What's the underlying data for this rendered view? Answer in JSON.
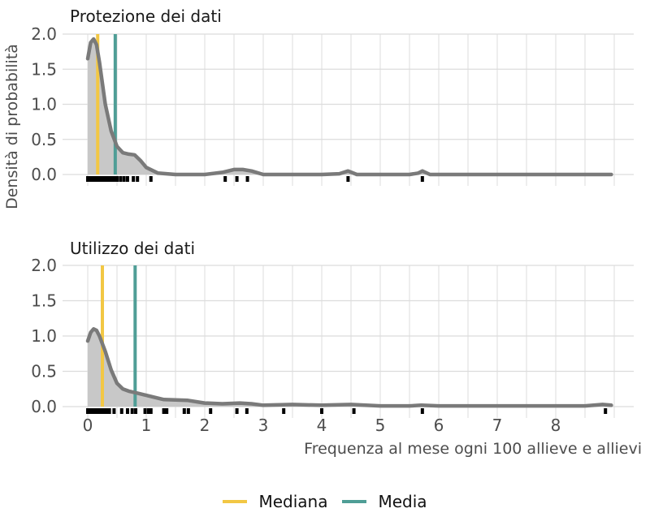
{
  "chart_data": [
    {
      "type": "area",
      "title": "Protezione dei dati",
      "xlabel": "Frequenza al mese ogni 100 allieve e allievi",
      "ylabel": "Densità di probabilità",
      "xlim": [
        0,
        9
      ],
      "ylim": [
        0,
        2.0
      ],
      "x_ticks": [
        0,
        1,
        2,
        3,
        4,
        5,
        6,
        7,
        8
      ],
      "y_ticks": [
        0.0,
        0.5,
        1.0,
        1.5,
        2.0
      ],
      "grid": true,
      "density_curve": {
        "x": [
          0.0,
          0.05,
          0.1,
          0.15,
          0.2,
          0.3,
          0.4,
          0.5,
          0.6,
          0.7,
          0.8,
          0.9,
          1.0,
          1.2,
          1.5,
          2.0,
          2.3,
          2.5,
          2.65,
          2.8,
          3.0,
          3.5,
          4.0,
          4.3,
          4.45,
          4.6,
          5.0,
          5.5,
          5.65,
          5.72,
          5.85,
          6.5,
          7.5,
          8.5,
          8.95
        ],
        "y": [
          1.65,
          1.88,
          1.93,
          1.85,
          1.6,
          1.0,
          0.62,
          0.4,
          0.31,
          0.29,
          0.28,
          0.2,
          0.1,
          0.02,
          0.0,
          0.0,
          0.03,
          0.07,
          0.07,
          0.05,
          0.0,
          0.0,
          0.0,
          0.01,
          0.05,
          0.0,
          0.0,
          0.0,
          0.02,
          0.05,
          0.0,
          0.0,
          0.0,
          0.0,
          0.0
        ]
      },
      "rug": [
        0.0,
        0.03,
        0.06,
        0.08,
        0.1,
        0.12,
        0.14,
        0.16,
        0.18,
        0.2,
        0.22,
        0.25,
        0.28,
        0.3,
        0.33,
        0.36,
        0.4,
        0.45,
        0.5,
        0.56,
        0.62,
        0.68,
        0.78,
        0.85,
        1.08,
        2.35,
        2.55,
        2.73,
        4.45,
        5.72
      ],
      "median": 0.17,
      "mean": 0.47
    },
    {
      "type": "area",
      "title": "Utilizzo dei dati",
      "xlabel": "Frequenza al mese ogni 100 allieve e allievi",
      "ylabel": "Densità di probabilità",
      "xlim": [
        0,
        9
      ],
      "ylim": [
        0,
        2.0
      ],
      "x_ticks": [
        0,
        1,
        2,
        3,
        4,
        5,
        6,
        7,
        8
      ],
      "y_ticks": [
        0.0,
        0.5,
        1.0,
        1.5,
        2.0
      ],
      "grid": true,
      "density_curve": {
        "x": [
          0.0,
          0.05,
          0.1,
          0.15,
          0.2,
          0.3,
          0.4,
          0.5,
          0.6,
          0.7,
          0.8,
          1.0,
          1.3,
          1.7,
          2.0,
          2.3,
          2.6,
          2.8,
          3.0,
          3.5,
          4.0,
          4.5,
          5.0,
          5.5,
          5.7,
          6.0,
          7.0,
          8.0,
          8.5,
          8.8,
          8.95
        ],
        "y": [
          0.93,
          1.05,
          1.1,
          1.08,
          1.0,
          0.78,
          0.52,
          0.33,
          0.25,
          0.22,
          0.2,
          0.16,
          0.1,
          0.09,
          0.05,
          0.04,
          0.05,
          0.04,
          0.02,
          0.03,
          0.02,
          0.03,
          0.01,
          0.01,
          0.02,
          0.01,
          0.01,
          0.01,
          0.01,
          0.03,
          0.02
        ]
      },
      "rug": [
        0.0,
        0.03,
        0.06,
        0.09,
        0.12,
        0.15,
        0.18,
        0.21,
        0.25,
        0.28,
        0.32,
        0.37,
        0.45,
        0.58,
        0.68,
        0.76,
        0.82,
        0.98,
        1.04,
        1.08,
        1.3,
        1.35,
        1.65,
        1.72,
        2.1,
        2.55,
        2.72,
        3.35,
        4.0,
        4.55,
        5.72,
        8.85
      ],
      "median": 0.25,
      "mean": 0.81
    }
  ],
  "axes": {
    "ylabel": "Densità di probabilità",
    "xlabel": "Frequenza al mese ogni 100 allieve e allievi",
    "y_tick_labels": [
      "2.0",
      "1.5",
      "1.0",
      "0.5",
      "0.0"
    ],
    "x_tick_labels": [
      "0",
      "1",
      "2",
      "3",
      "4",
      "5",
      "6",
      "7",
      "8"
    ]
  },
  "panels": [
    {
      "title": "Protezione dei dati"
    },
    {
      "title": "Utilizzo dei dati"
    }
  ],
  "legend": {
    "items": [
      {
        "label": "Mediana",
        "color": "#f2c744"
      },
      {
        "label": "Media",
        "color": "#4f9e96"
      }
    ]
  },
  "colors": {
    "curve": "#7a7a7a",
    "fill": "#c8c8c8",
    "grid": "#dcdcdc",
    "rug": "#000000",
    "median": "#f2c744",
    "mean": "#4f9e96"
  }
}
